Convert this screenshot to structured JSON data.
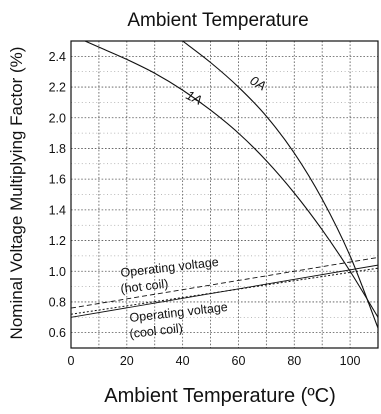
{
  "chart_data": {
    "type": "line",
    "title": "Ambient Temperature",
    "xlabel": "Ambient Temperature (ºC)",
    "ylabel": "Nominal Voltage Multiplying Factor (%)",
    "xlim": [
      0,
      110
    ],
    "ylim": [
      0.5,
      2.5
    ],
    "xticks": [
      0,
      20,
      40,
      60,
      80,
      100
    ],
    "yticks": [
      0.6,
      0.8,
      1.0,
      1.2,
      1.4,
      1.6,
      1.8,
      2.0,
      2.2,
      2.4
    ],
    "grid": true,
    "series": [
      {
        "name": "0A",
        "style": "solid",
        "x": [
          40,
          50,
          60,
          70,
          80,
          90,
          100,
          110
        ],
        "y": [
          2.5,
          2.36,
          2.2,
          2.01,
          1.77,
          1.47,
          1.1,
          0.63
        ]
      },
      {
        "name": "1A",
        "style": "solid",
        "x": [
          5,
          10,
          20,
          30,
          40,
          50,
          60,
          70,
          80,
          90,
          100,
          110
        ],
        "y": [
          2.5,
          2.46,
          2.38,
          2.29,
          2.18,
          2.05,
          1.9,
          1.72,
          1.51,
          1.27,
          1.0,
          0.7
        ]
      },
      {
        "name": "Operating voltage (hot coil)",
        "style": "dashed",
        "x": [
          0,
          110
        ],
        "y": [
          0.76,
          1.09
        ]
      },
      {
        "name": "Operating voltage (cool coil)",
        "style": "dotted",
        "x": [
          0,
          110
        ],
        "y": [
          0.72,
          1.02
        ]
      },
      {
        "name": "",
        "style": "solid-thin",
        "x": [
          0,
          110
        ],
        "y": [
          0.7,
          1.04
        ]
      }
    ],
    "annotations": [
      {
        "id": "hot1",
        "text": "Operating voltage"
      },
      {
        "id": "hot2",
        "text": "(hot coil)"
      },
      {
        "id": "cool1",
        "text": "Operating voltage"
      },
      {
        "id": "cool2",
        "text": "(cool coil)"
      },
      {
        "id": "c0",
        "text": "0A"
      },
      {
        "id": "c1",
        "text": "1A"
      }
    ]
  }
}
